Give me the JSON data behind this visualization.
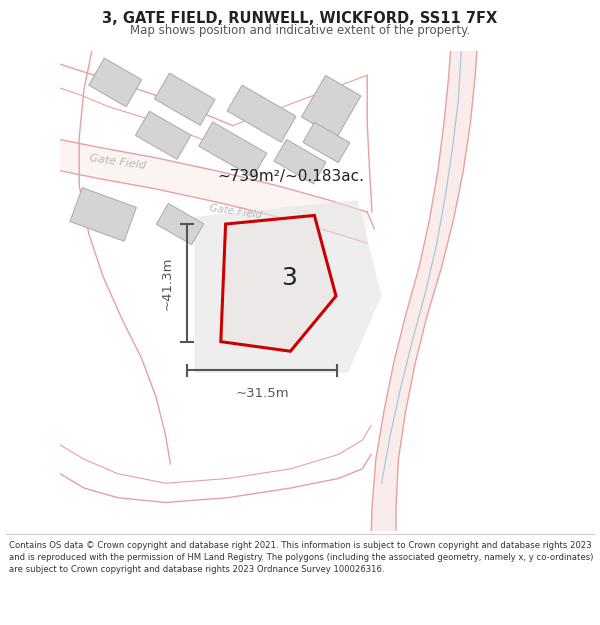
{
  "title_line1": "3, GATE FIELD, RUNWELL, WICKFORD, SS11 7FX",
  "title_line2": "Map shows position and indicative extent of the property.",
  "copyright_text": "Contains OS data © Crown copyright and database right 2021. This information is subject to Crown copyright and database rights 2023 and is reproduced with the permission of HM Land Registry. The polygons (including the associated geometry, namely x, y co-ordinates) are subject to Crown copyright and database rights 2023 Ordnance Survey 100026316.",
  "area_label": "~739m²/~0.183ac.",
  "plot_label": "3",
  "dim_vertical": "~41.3m",
  "dim_horizontal": "~31.5m",
  "road_label_1": "Gate Field",
  "road_label_2": "Gate Field",
  "property_color": "#cc0000",
  "dim_color": "#555555",
  "road_outline_color": "#e8a0a0",
  "building_color": "#d4d4d4",
  "building_outline": "#b0b0b0",
  "text_color": "#222222",
  "road_label_color": "#b8b8b8",
  "stream_color": "#a8c8d8",
  "map_bg": "#f8f8f6"
}
